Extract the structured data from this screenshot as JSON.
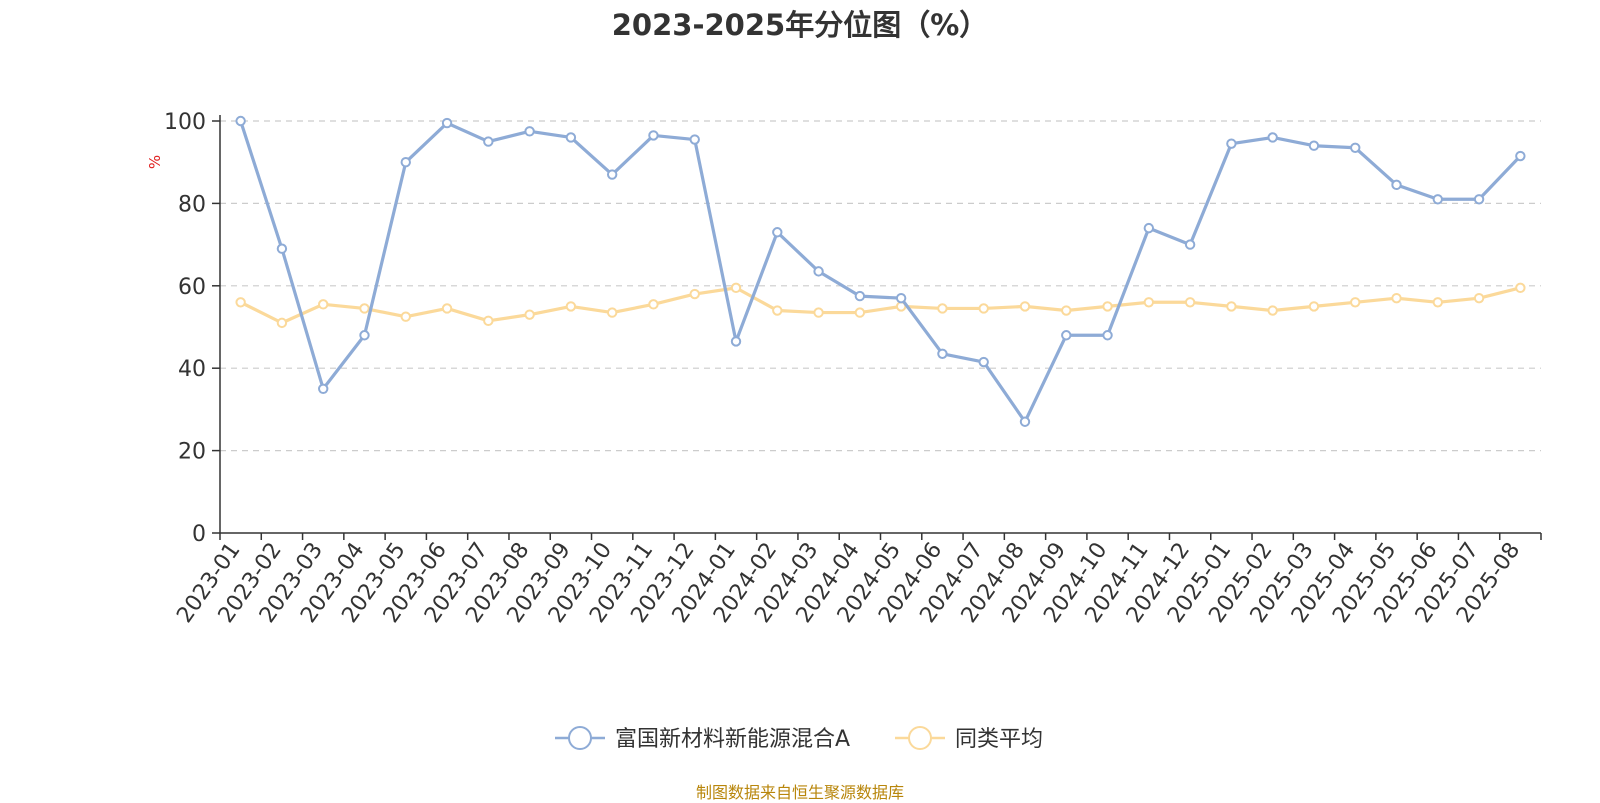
{
  "chart_data": {
    "type": "line",
    "title": "2023-2025年分位图（%）",
    "ylabel": "%",
    "xlabel": "",
    "ylim": [
      0,
      100
    ],
    "yticks": [
      0,
      20,
      40,
      60,
      80,
      100
    ],
    "grid": "horizontal-dashed",
    "legend_position": "bottom-center",
    "categories": [
      "2023-01",
      "2023-02",
      "2023-03",
      "2023-04",
      "2023-05",
      "2023-06",
      "2023-07",
      "2023-08",
      "2023-09",
      "2023-10",
      "2023-11",
      "2023-12",
      "2024-01",
      "2024-02",
      "2024-03",
      "2024-04",
      "2024-05",
      "2024-06",
      "2024-07",
      "2024-08",
      "2024-09",
      "2024-10",
      "2024-11",
      "2024-12",
      "2025-01",
      "2025-02",
      "2025-03",
      "2025-04",
      "2025-05",
      "2025-06",
      "2025-07",
      "2025-08"
    ],
    "series": [
      {
        "name": "富国新材料新能源混合A",
        "color": "#8eabd6",
        "values": [
          100,
          69,
          35,
          48,
          90,
          99.5,
          95,
          97.5,
          96,
          87,
          96.5,
          95.5,
          46.5,
          73,
          63.5,
          57.5,
          57,
          43.5,
          41.5,
          27,
          48,
          48,
          74,
          70,
          94.5,
          96,
          94,
          93.5,
          84.5,
          81,
          81,
          91.5
        ]
      },
      {
        "name": "同类平均",
        "color": "#fbd99a",
        "values": [
          56,
          51,
          55.5,
          54.5,
          52.5,
          54.5,
          51.5,
          53,
          55,
          53.5,
          55.5,
          58,
          59.5,
          54,
          53.5,
          53.5,
          55,
          54.5,
          54.5,
          55,
          54,
          55,
          56,
          56,
          55,
          54,
          55,
          56,
          57,
          56,
          57,
          59.5
        ]
      }
    ]
  },
  "footer": {
    "source": "制图数据来自恒生聚源数据库"
  }
}
